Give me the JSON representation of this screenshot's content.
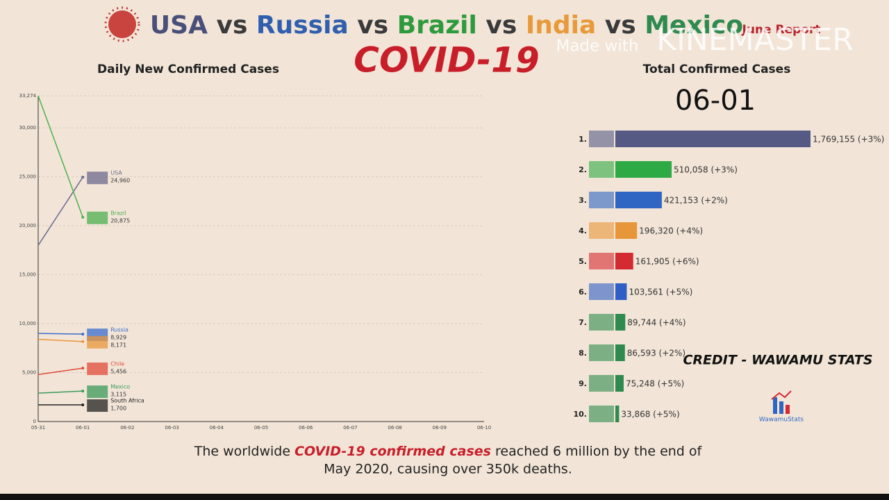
{
  "header": {
    "title_parts": [
      {
        "text": "USA",
        "color": "#4a4f7a"
      },
      {
        "text": " vs ",
        "color": "#3a3a3a"
      },
      {
        "text": "Russia",
        "color": "#2f5fae"
      },
      {
        "text": " vs ",
        "color": "#3a3a3a"
      },
      {
        "text": "Brazil",
        "color": "#2e9a3e"
      },
      {
        "text": " vs ",
        "color": "#3a3a3a"
      },
      {
        "text": "India",
        "color": "#e89a3a"
      },
      {
        "text": " vs ",
        "color": "#3a3a3a"
      },
      {
        "text": "Mexico",
        "color": "#2e8a4e"
      }
    ],
    "report": "June Report",
    "headline": "COVID-19",
    "watermark_prefix": "Made with",
    "watermark": "KINEMASTER"
  },
  "credit": "CREDIT - WAWAMU STATS",
  "logo": "WawamuStats",
  "footer": {
    "line1": [
      {
        "text": "The worldwide ",
        "highlight": false
      },
      {
        "text": "COVID-19 confirmed cases",
        "highlight": true
      },
      {
        "text": " reached 6 million by the end of",
        "highlight": false
      }
    ],
    "line2": "May 2020, causing over 350k deaths."
  },
  "chart_data": [
    {
      "type": "line",
      "title": "Daily New Confirmed Cases",
      "categories": [
        "05-31",
        "06-01",
        "06-02",
        "06-03",
        "06-04",
        "06-05",
        "06-06",
        "06-07",
        "06-08",
        "06-09",
        "06-10"
      ],
      "ylim": [
        0,
        33274
      ],
      "yticks": [
        0,
        {
          "value": 5000,
          "label": "5,000"
        },
        {
          "value": 10000,
          "label": "10,000"
        },
        {
          "value": 15000,
          "label": "15,000"
        },
        {
          "value": 20000,
          "label": "20,000"
        },
        {
          "value": 25000,
          "label": "25,000"
        },
        {
          "value": 30000,
          "label": "30,000"
        },
        {
          "value": 33274,
          "label": "33,274"
        }
      ],
      "grid": true,
      "series": [
        {
          "name": "USA",
          "color": "#6c6a8e",
          "values": [
            18000,
            24960,
            null,
            null,
            null,
            null,
            null,
            null,
            null,
            null,
            null
          ],
          "value_labels": [
            null,
            "24,960",
            null,
            null,
            null,
            null,
            null,
            null,
            null,
            null,
            null
          ]
        },
        {
          "name": "Brazil",
          "color": "#4caf50",
          "values": [
            33274,
            20875,
            null,
            null,
            null,
            null,
            null,
            null,
            null,
            null,
            null
          ],
          "value_labels": [
            null,
            "20,875",
            null,
            null,
            null,
            null,
            null,
            null,
            null,
            null,
            null
          ]
        },
        {
          "name": "Russia",
          "color": "#3a6ccc",
          "values": [
            9000,
            8929,
            null,
            null,
            null,
            null,
            null,
            null,
            null,
            null,
            null
          ],
          "value_labels": [
            null,
            "8,929",
            null,
            null,
            null,
            null,
            null,
            null,
            null,
            null,
            null
          ]
        },
        {
          "name": null,
          "color": "#e8963a",
          "values": [
            8400,
            8171,
            null,
            null,
            null,
            null,
            null,
            null,
            null,
            null,
            null
          ],
          "value_labels": [
            null,
            "8,171",
            null,
            null,
            null,
            null,
            null,
            null,
            null,
            null,
            null
          ]
        },
        {
          "name": "Chile",
          "color": "#e04a3a",
          "values": [
            4800,
            5456,
            null,
            null,
            null,
            null,
            null,
            null,
            null,
            null,
            null
          ],
          "value_labels": [
            null,
            "5,456",
            null,
            null,
            null,
            null,
            null,
            null,
            null,
            null,
            null
          ]
        },
        {
          "name": "Mexico",
          "color": "#3a9a5a",
          "values": [
            2900,
            3115,
            null,
            null,
            null,
            null,
            null,
            null,
            null,
            null,
            null
          ],
          "value_labels": [
            null,
            "3,115",
            null,
            null,
            null,
            null,
            null,
            null,
            null,
            null,
            null
          ]
        },
        {
          "name": "South Africa",
          "color": "#222222",
          "values": [
            1700,
            1700,
            null,
            null,
            null,
            null,
            null,
            null,
            null,
            null,
            null
          ],
          "value_labels": [
            null,
            "1,700",
            null,
            null,
            null,
            null,
            null,
            null,
            null,
            null,
            null
          ]
        }
      ]
    },
    {
      "type": "hbar",
      "title": "Total Confirmed Cases",
      "subtitle": "06-01",
      "categories": [
        "1.",
        "2.",
        "3.",
        "4.",
        "5.",
        "6.",
        "7.",
        "8.",
        "9.",
        "10."
      ],
      "values": [
        1769155,
        510058,
        421153,
        196320,
        161905,
        103561,
        89744,
        86593,
        75248,
        33868
      ],
      "value_labels": [
        "1,769,155 (+3%)",
        "510,058 (+3%)",
        "421,153 (+2%)",
        "196,320 (+4%)",
        "161,905 (+6%)",
        "103,561 (+5%)",
        "89,744 (+4%)",
        "86,593 (+2%)",
        "75,248 (+5%)",
        "33,868 (+5%)"
      ],
      "colors": [
        "#555a85",
        "#2eaa44",
        "#2f66c4",
        "#e8963a",
        "#d42a32",
        "#2f5fc4",
        "#2e8a4e",
        "#2e8a4e",
        "#2e8a4e",
        "#2e8a4e"
      ],
      "xlim": [
        0,
        1769155
      ]
    }
  ]
}
